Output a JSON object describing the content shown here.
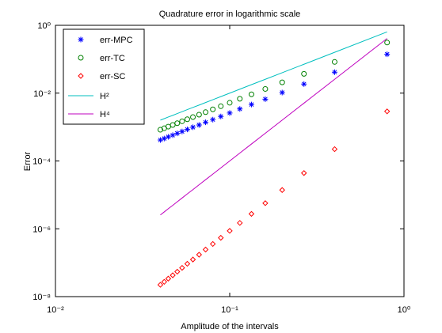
{
  "chart_data": {
    "type": "line",
    "title": "Quadrature error in logarithmic scale",
    "x_label": "Amplitude of the intervals",
    "y_label": "Error",
    "log_x": true,
    "log_y": true,
    "xlim": [
      0.01,
      1
    ],
    "ylim": [
      1e-08,
      1
    ],
    "xticks": [
      {
        "value": 0.01,
        "label": "10⁻²"
      },
      {
        "value": 0.1,
        "label": "10⁻¹"
      },
      {
        "value": 1,
        "label": "10⁰"
      }
    ],
    "yticks": [
      {
        "value": 1e-08,
        "label": "10⁻⁸"
      },
      {
        "value": 1e-06,
        "label": "10⁻⁶"
      },
      {
        "value": 0.0001,
        "label": "10⁻⁴"
      },
      {
        "value": 0.01,
        "label": "10⁻²"
      },
      {
        "value": 1,
        "label": "10⁰"
      }
    ],
    "legend": "upper left",
    "x": [
      0.8,
      0.4,
      0.2667,
      0.2,
      0.16,
      0.1333,
      0.1143,
      0.1,
      0.0889,
      0.08,
      0.0727,
      0.0667,
      0.0615,
      0.0571,
      0.0533,
      0.05,
      0.0471,
      0.0444,
      0.0421,
      0.04
    ],
    "series": [
      {
        "name": "err-MPC",
        "color": "#0000ff",
        "marker": "star",
        "values": [
          0.14,
          0.0416,
          0.0185,
          0.0104,
          0.00666,
          0.00462,
          0.00341,
          0.0026,
          0.00205,
          0.00166,
          0.00138,
          0.00115,
          0.000985,
          0.00085,
          0.000739,
          0.00065,
          0.000575,
          0.000514,
          0.00046,
          0.000416
        ]
      },
      {
        "name": "err-TC",
        "color": "#008000",
        "marker": "circle",
        "values": [
          0.31,
          0.0832,
          0.037,
          0.0208,
          0.0133,
          0.00924,
          0.00681,
          0.0052,
          0.00411,
          0.00333,
          0.00275,
          0.00231,
          0.00197,
          0.0017,
          0.00148,
          0.0013,
          0.00115,
          0.00103,
          0.00092,
          0.000832
        ]
      },
      {
        "name": "err-SC",
        "color": "#ff0000",
        "marker": "diamond",
        "values": [
          0.0029,
          0.000223,
          4.4e-05,
          1.39e-05,
          5.7e-06,
          2.75e-06,
          1.49e-06,
          8.7e-07,
          5.43e-07,
          3.57e-07,
          2.44e-07,
          1.72e-07,
          1.24e-07,
          9.3e-08,
          7.04e-08,
          5.44e-08,
          4.26e-08,
          3.39e-08,
          2.73e-08,
          2.23e-08
        ]
      },
      {
        "name": "H²",
        "color": "#00bfbf",
        "marker": "none",
        "values": [
          0.64,
          0.16,
          0.0711,
          0.04,
          0.0256,
          0.0178,
          0.0131,
          0.01,
          0.0079,
          0.0064,
          0.00529,
          0.00444,
          0.00379,
          0.00327,
          0.00284,
          0.0025,
          0.00221,
          0.00198,
          0.00177,
          0.0016
        ]
      },
      {
        "name": "H⁴",
        "color": "#bf00bf",
        "marker": "none",
        "values": [
          0.4096,
          0.0256,
          0.00506,
          0.0016,
          0.000655,
          0.000316,
          0.000171,
          0.0001,
          6.24e-05,
          4.1e-05,
          2.8e-05,
          1.98e-05,
          1.43e-05,
          1.07e-05,
          8.09e-06,
          6.25e-06,
          4.9e-06,
          3.9e-06,
          3.14e-06,
          2.56e-06
        ]
      }
    ]
  }
}
